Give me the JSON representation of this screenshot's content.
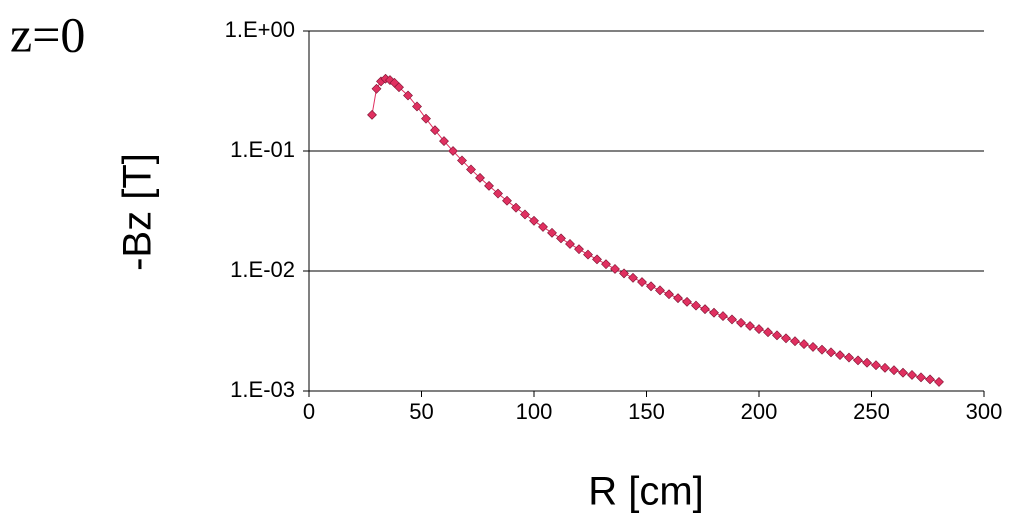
{
  "chart_data": {
    "type": "scatter",
    "annotation": "z=0",
    "y_label": "-Bz [T]",
    "x_label": "R [cm]",
    "x": [
      28,
      30,
      32,
      34,
      36,
      38,
      40,
      44,
      48,
      52,
      56,
      60,
      64,
      68,
      72,
      76,
      80,
      84,
      88,
      92,
      96,
      100,
      104,
      108,
      112,
      116,
      120,
      124,
      128,
      132,
      136,
      140,
      144,
      148,
      152,
      156,
      160,
      164,
      168,
      172,
      176,
      180,
      184,
      188,
      192,
      196,
      200,
      204,
      208,
      212,
      216,
      220,
      224,
      228,
      232,
      236,
      240,
      244,
      248,
      252,
      256,
      260,
      264,
      268,
      272,
      276,
      280
    ],
    "series": [
      {
        "name": "-Bz",
        "color": "#e03060",
        "values": [
          0.2,
          0.33,
          0.38,
          0.4,
          0.39,
          0.37,
          0.34,
          0.29,
          0.235,
          0.186,
          0.149,
          0.121,
          0.1,
          0.0834,
          0.0702,
          0.0597,
          0.0512,
          0.0442,
          0.0385,
          0.0337,
          0.0296,
          0.0262,
          0.0233,
          0.0208,
          0.0187,
          0.0168,
          0.0152,
          0.0137,
          0.0125,
          0.0114,
          0.0104,
          0.00955,
          0.00878,
          0.00809,
          0.00746,
          0.0069,
          0.0064,
          0.00594,
          0.00553,
          0.00515,
          0.00481,
          0.00449,
          0.00421,
          0.00395,
          0.0037,
          0.00348,
          0.00328,
          0.00309,
          0.00291,
          0.00275,
          0.0026,
          0.00246,
          0.00233,
          0.00221,
          0.0021,
          0.00199,
          0.0019,
          0.0018,
          0.00172,
          0.00164,
          0.00156,
          0.00149,
          0.00142,
          0.00136,
          0.0013,
          0.00125,
          0.00119
        ]
      }
    ],
    "xlim": [
      0,
      300
    ],
    "xticks": [
      0,
      50,
      100,
      150,
      200,
      250,
      300
    ],
    "ylim": [
      0.001,
      1
    ],
    "log_y": true,
    "yticks": [
      {
        "value": 1,
        "label": "1.E+00"
      },
      {
        "value": 0.1,
        "label": "1.E-01"
      },
      {
        "value": 0.01,
        "label": "1.E-02"
      },
      {
        "value": 0.001,
        "label": "1.E-03"
      }
    ],
    "grid": true
  }
}
